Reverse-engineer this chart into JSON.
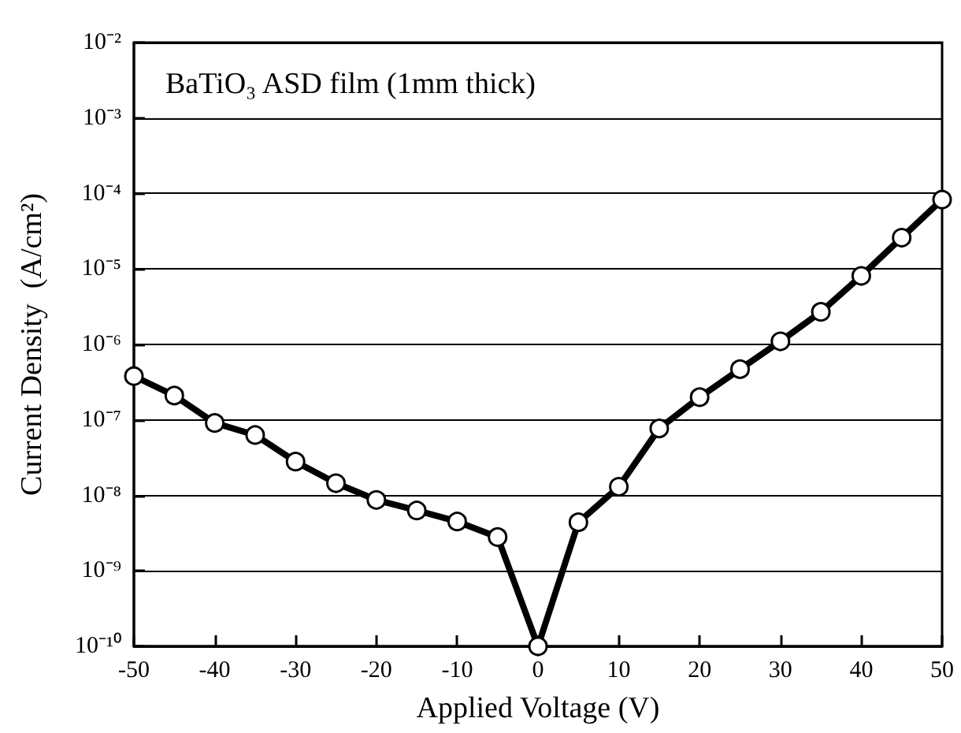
{
  "chart_data": {
    "type": "line",
    "xlabel": "Applied Voltage (V)",
    "ylabel": "Current Density  (A/cm²)",
    "annotations": [
      "BaTiO₃ ASD film (1mm thick)"
    ],
    "x": [
      -50,
      -45,
      -40,
      -35,
      -30,
      -25,
      -20,
      -15,
      -10,
      -5,
      0,
      5,
      10,
      15,
      20,
      25,
      30,
      35,
      40,
      45,
      50
    ],
    "series": [
      {
        "color": "#000000",
        "values": [
          3.8e-07,
          2.1e-07,
          9.1e-08,
          6.3e-08,
          2.8e-08,
          1.45e-08,
          8.7e-09,
          6.3e-09,
          4.5e-09,
          2.8e-09,
          1e-10,
          4.4e-09,
          1.3e-08,
          7.7e-08,
          2e-07,
          4.7e-07,
          1.1e-06,
          2.7e-06,
          8.1e-06,
          2.6e-05,
          8.3e-05
        ]
      }
    ],
    "xlim": [
      -50,
      50
    ],
    "xticks": [
      -50,
      -40,
      -30,
      -20,
      -10,
      0,
      10,
      20,
      30,
      40,
      50
    ],
    "ylim": [
      1e-10,
      0.01
    ],
    "yticks": [
      {
        "value": 1e-10,
        "label": "10⁻¹⁰"
      },
      {
        "value": 1e-09,
        "label": "10⁻⁹"
      },
      {
        "value": 1e-08,
        "label": "10⁻⁸"
      },
      {
        "value": 1e-07,
        "label": "10⁻⁷"
      },
      {
        "value": 1e-06,
        "label": "10⁻⁶"
      },
      {
        "value": 1e-05,
        "label": "10⁻⁵"
      },
      {
        "value": 0.0001,
        "label": "10⁻⁴"
      },
      {
        "value": 0.001,
        "label": "10⁻³"
      },
      {
        "value": 0.01,
        "label": "10⁻²"
      }
    ],
    "log": "y",
    "grid": "y",
    "marker": "circle",
    "line_style": "solid"
  }
}
